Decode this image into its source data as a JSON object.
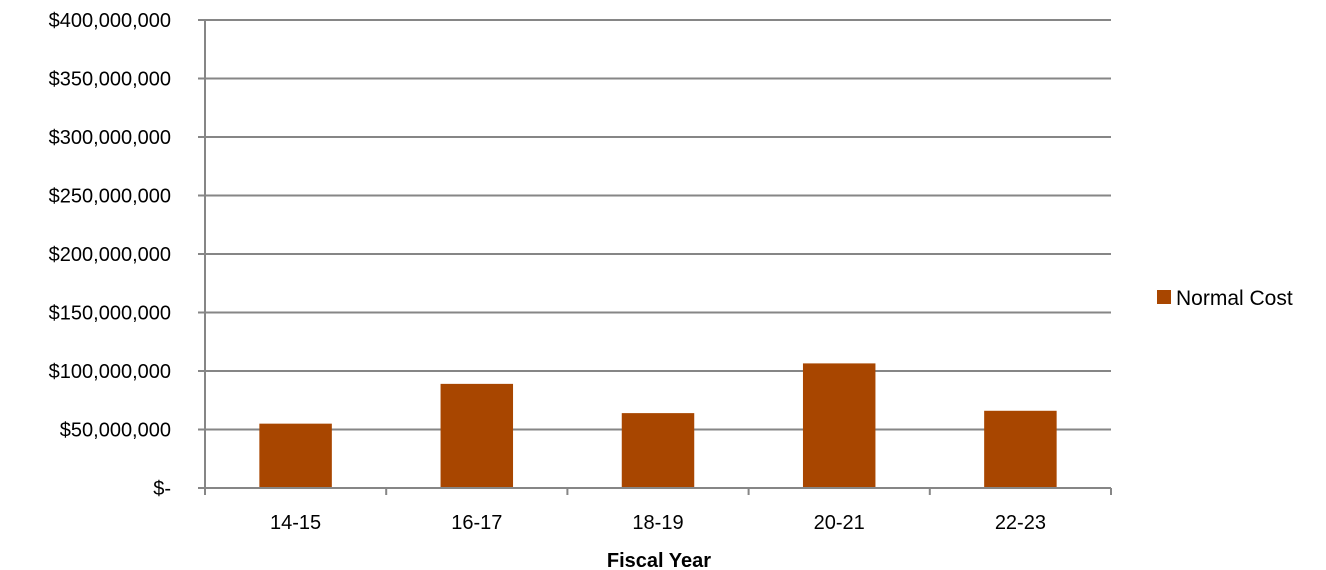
{
  "chart_data": {
    "type": "bar",
    "categories": [
      "14-15",
      "16-17",
      "18-19",
      "20-21",
      "22-23"
    ],
    "series": [
      {
        "name": "Normal Cost",
        "values": [
          55000000,
          89000000,
          64000000,
          106500000,
          66000000
        ],
        "color": "#A84600"
      }
    ],
    "xlabel": "Fiscal Year",
    "ylabel": "",
    "ylim": [
      0,
      400000000
    ],
    "yticks": [
      0,
      50000000,
      100000000,
      150000000,
      200000000,
      250000000,
      300000000,
      350000000,
      400000000
    ],
    "ytick_labels": [
      "$-",
      "$50,000,000",
      "$100,000,000",
      "$150,000,000",
      "$200,000,000",
      "$250,000,000",
      "$300,000,000",
      "$350,000,000",
      "$400,000,000"
    ],
    "grid": true,
    "gridline_color": "#868686",
    "legend_position": "right"
  }
}
